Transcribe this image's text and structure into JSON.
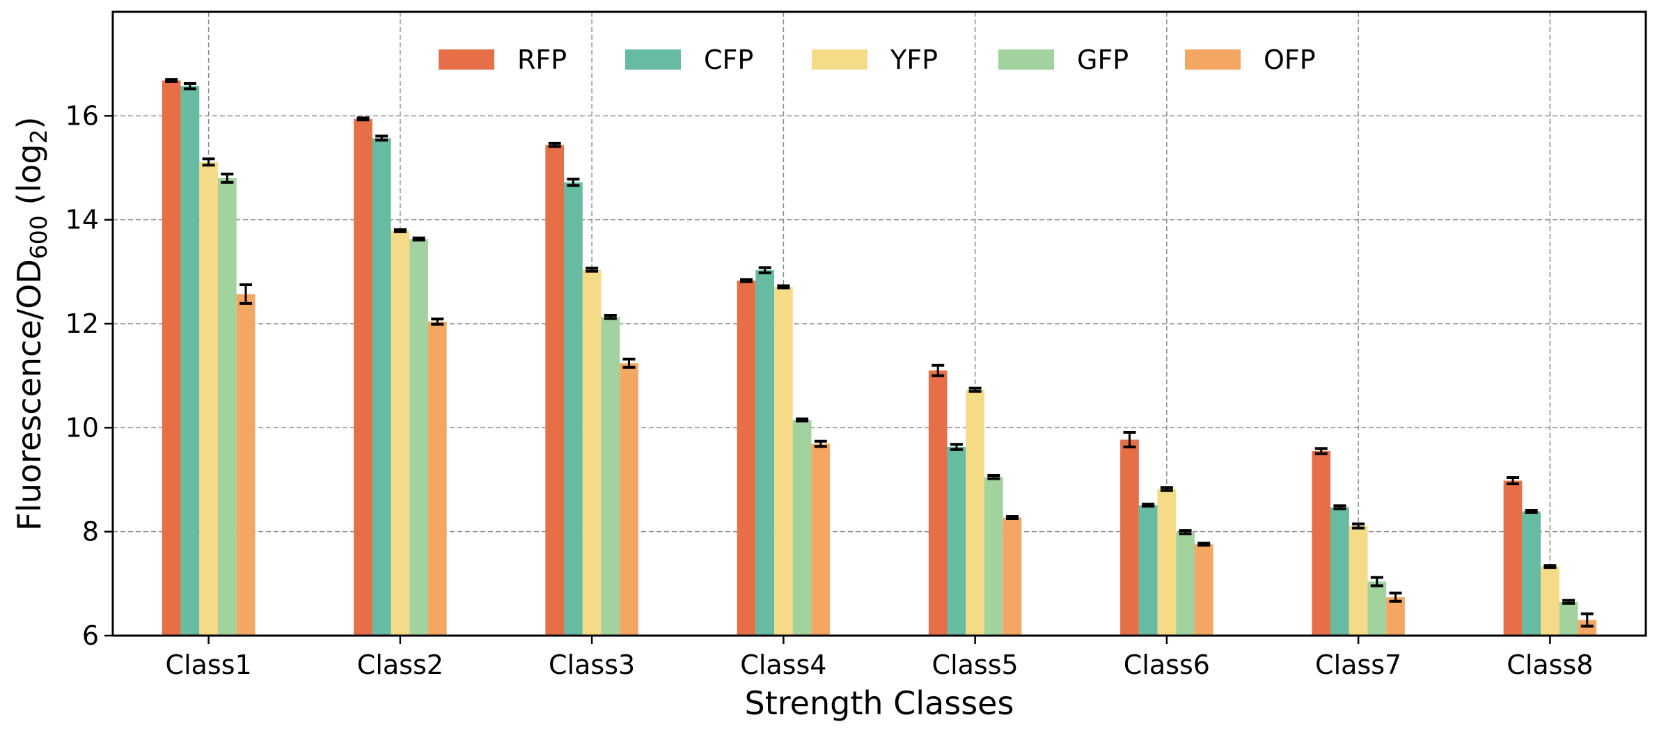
{
  "chart_data": {
    "type": "bar",
    "xlabel": "Strength Classes",
    "ylabel": {
      "main": "Fluorescence/OD",
      "main_sub": "600",
      "suffix_open": " (log",
      "suffix_sub": "2",
      "suffix_close": ")"
    },
    "ylim": [
      6,
      18
    ],
    "yticks": [
      6,
      8,
      10,
      12,
      14,
      16
    ],
    "grid": true,
    "legend_position": "top-center",
    "categories": [
      "Class1",
      "Class2",
      "Class3",
      "Class4",
      "Class5",
      "Class6",
      "Class7",
      "Class8"
    ],
    "series": [
      {
        "name": "RFP",
        "color": "#E76F47",
        "values": [
          16.68,
          15.94,
          15.44,
          12.83,
          11.1,
          9.77,
          9.55,
          8.98
        ],
        "errors": [
          0.02,
          0.02,
          0.03,
          0.02,
          0.1,
          0.14,
          0.05,
          0.06
        ]
      },
      {
        "name": "CFP",
        "color": "#66BBA2",
        "values": [
          16.57,
          15.57,
          14.72,
          13.03,
          9.63,
          8.51,
          8.47,
          8.39
        ],
        "errors": [
          0.05,
          0.04,
          0.06,
          0.05,
          0.05,
          0.02,
          0.03,
          0.02
        ]
      },
      {
        "name": "YFP",
        "color": "#F5DA88",
        "values": [
          15.11,
          13.79,
          13.04,
          12.71,
          10.73,
          8.82,
          8.11,
          7.33
        ],
        "errors": [
          0.06,
          0.02,
          0.03,
          0.02,
          0.03,
          0.03,
          0.04,
          0.02
        ]
      },
      {
        "name": "GFP",
        "color": "#A2D29D",
        "values": [
          14.8,
          13.63,
          12.13,
          10.15,
          9.05,
          7.99,
          7.04,
          6.65
        ],
        "errors": [
          0.08,
          0.02,
          0.03,
          0.02,
          0.03,
          0.03,
          0.08,
          0.03
        ]
      },
      {
        "name": "OFP",
        "color": "#F4A762",
        "values": [
          12.57,
          12.04,
          11.24,
          9.69,
          8.27,
          7.76,
          6.74,
          6.3
        ],
        "errors": [
          0.18,
          0.05,
          0.08,
          0.05,
          0.02,
          0.02,
          0.08,
          0.12
        ]
      }
    ]
  }
}
